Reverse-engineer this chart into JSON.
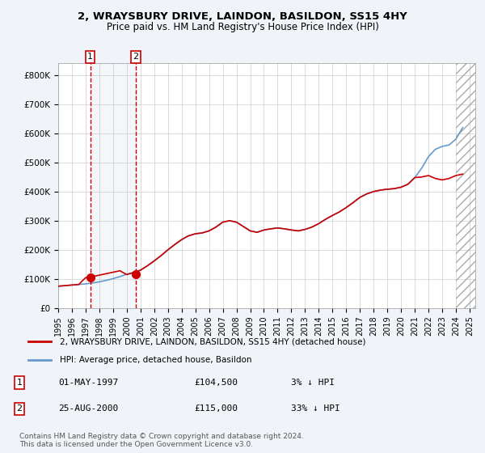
{
  "title": "2, WRAYSBURY DRIVE, LAINDON, BASILDON, SS15 4HY",
  "subtitle": "Price paid vs. HM Land Registry's House Price Index (HPI)",
  "ylabel": "",
  "xlim_start": "1995-01-01",
  "xlim_end": "2025-06-01",
  "ylim": [
    0,
    840000
  ],
  "yticks": [
    0,
    100000,
    200000,
    300000,
    400000,
    500000,
    600000,
    700000,
    800000
  ],
  "ytick_labels": [
    "£0",
    "£100K",
    "£200K",
    "£300K",
    "£400K",
    "£500K",
    "£600K",
    "£700K",
    "£800K"
  ],
  "hpi_color": "#6699cc",
  "property_color": "#cc0000",
  "sale1_date": "1997-05-01",
  "sale1_price": 104500,
  "sale2_date": "2000-08-25",
  "sale2_price": 115000,
  "legend_property": "2, WRAYSBURY DRIVE, LAINDON, BASILDON, SS15 4HY (detached house)",
  "legend_hpi": "HPI: Average price, detached house, Basildon",
  "table_row1": [
    "1",
    "01-MAY-1997",
    "£104,500",
    "3% ↓ HPI"
  ],
  "table_row2": [
    "2",
    "25-AUG-2000",
    "£115,000",
    "33% ↓ HPI"
  ],
  "footer": "Contains HM Land Registry data © Crown copyright and database right 2024.\nThis data is licensed under the Open Government Licence v3.0.",
  "background_color": "#f0f4f8",
  "plot_bg_color": "#ffffff",
  "hpi_data_years": [
    1995,
    1995.5,
    1996,
    1996.5,
    1997,
    1997.5,
    1998,
    1998.5,
    1999,
    1999.5,
    2000,
    2000.5,
    2001,
    2001.5,
    2002,
    2002.5,
    2003,
    2003.5,
    2004,
    2004.5,
    2005,
    2005.5,
    2006,
    2006.5,
    2007,
    2007.5,
    2008,
    2008.5,
    2009,
    2009.5,
    2010,
    2010.5,
    2011,
    2011.5,
    2012,
    2012.5,
    2013,
    2013.5,
    2014,
    2014.5,
    2015,
    2015.5,
    2016,
    2016.5,
    2017,
    2017.5,
    2018,
    2018.5,
    2019,
    2019.5,
    2020,
    2020.5,
    2021,
    2021.5,
    2022,
    2022.5,
    2023,
    2023.5,
    2024,
    2024.5
  ],
  "hpi_data_values": [
    75000,
    77000,
    79000,
    81000,
    83000,
    86000,
    90000,
    95000,
    101000,
    108000,
    116000,
    122000,
    130000,
    145000,
    162000,
    180000,
    200000,
    218000,
    235000,
    248000,
    255000,
    258000,
    265000,
    278000,
    295000,
    300000,
    295000,
    280000,
    265000,
    260000,
    268000,
    272000,
    275000,
    272000,
    268000,
    265000,
    270000,
    278000,
    290000,
    305000,
    318000,
    330000,
    345000,
    362000,
    380000,
    392000,
    400000,
    405000,
    408000,
    410000,
    415000,
    425000,
    448000,
    480000,
    520000,
    545000,
    555000,
    560000,
    580000,
    620000
  ],
  "prop_data_years": [
    1995,
    1995.5,
    1996,
    1996.5,
    1997,
    1997.5,
    1998,
    1998.5,
    1999,
    1999.5,
    2000,
    2000.5,
    2001,
    2001.5,
    2002,
    2002.5,
    2003,
    2003.5,
    2004,
    2004.5,
    2005,
    2005.5,
    2006,
    2006.5,
    2007,
    2007.5,
    2008,
    2008.5,
    2009,
    2009.5,
    2010,
    2010.5,
    2011,
    2011.5,
    2012,
    2012.5,
    2013,
    2013.5,
    2014,
    2014.5,
    2015,
    2015.5,
    2016,
    2016.5,
    2017,
    2017.5,
    2018,
    2018.5,
    2019,
    2019.5,
    2020,
    2020.5,
    2021,
    2021.5,
    2022,
    2022.5,
    2023,
    2023.5,
    2024,
    2024.5
  ],
  "prop_data_values": [
    75000,
    77000,
    79000,
    81000,
    104500,
    108000,
    113000,
    118000,
    123000,
    128000,
    115000,
    122000,
    130000,
    145000,
    162000,
    180000,
    200000,
    218000,
    235000,
    248000,
    255000,
    258000,
    265000,
    278000,
    295000,
    300000,
    295000,
    280000,
    265000,
    260000,
    268000,
    272000,
    275000,
    272000,
    268000,
    265000,
    270000,
    278000,
    290000,
    305000,
    318000,
    330000,
    345000,
    362000,
    380000,
    392000,
    400000,
    405000,
    408000,
    410000,
    415000,
    425000,
    448000,
    450000,
    455000,
    445000,
    440000,
    445000,
    455000,
    460000
  ]
}
